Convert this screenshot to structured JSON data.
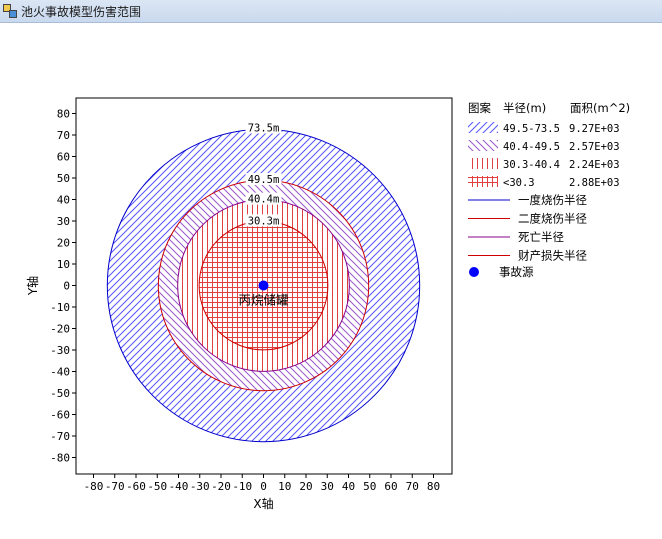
{
  "window": {
    "title": "池火事故模型伤害范围"
  },
  "chart_data": {
    "type": "scatter",
    "title": "",
    "xlabel": "X轴",
    "ylabel": "Y轴",
    "xlim": [
      -85,
      85
    ],
    "ylim": [
      -88,
      88
    ],
    "xticks": [
      -80,
      -70,
      -60,
      -50,
      -40,
      -30,
      -20,
      -10,
      0,
      10,
      20,
      30,
      40,
      50,
      60,
      70,
      80
    ],
    "yticks": [
      80,
      70,
      60,
      50,
      40,
      30,
      20,
      10,
      0,
      -10,
      -20,
      -30,
      -40,
      -50,
      -60,
      -70,
      -80
    ],
    "grid": false,
    "center": {
      "x": 0,
      "y": 0,
      "label": "丙烷储罐"
    },
    "circles": [
      {
        "name": "一度烧伤半径",
        "radius": 73.5,
        "label": "73.5m",
        "color": "#0000cc"
      },
      {
        "name": "二度烧伤半径",
        "radius": 49.5,
        "label": "49.5m",
        "color": "#cc0000"
      },
      {
        "name": "死亡半径",
        "radius": 40.4,
        "label": "40.4m",
        "color": "#880088"
      },
      {
        "name": "财产损失半径",
        "radius": 30.3,
        "label": "30.3m",
        "color": "#cc0000"
      }
    ],
    "zones": [
      {
        "range": "49.5-73.5",
        "area": "9.27E+03",
        "pattern": "diag-blue"
      },
      {
        "range": "40.4-49.5",
        "area": "2.57E+03",
        "pattern": "diag-purple"
      },
      {
        "range": "30.3-40.4",
        "area": "2.24E+03",
        "pattern": "vert-red"
      },
      {
        "range": "<30.3",
        "area": "2.88E+03",
        "pattern": "grid-red"
      }
    ],
    "legend": {
      "placement": "right",
      "header": [
        "图案",
        "半径(m)",
        "面积(m^2)"
      ],
      "line_items": [
        {
          "label": "一度烧伤半径",
          "color": "#0000cc"
        },
        {
          "label": "二度烧伤半径",
          "color": "#cc0000"
        },
        {
          "label": "死亡半径",
          "color": "#880088"
        },
        {
          "label": "财产损失半径",
          "color": "#cc0000"
        }
      ],
      "marker_item": {
        "label": "事故源",
        "color": "#0000ff"
      }
    }
  }
}
